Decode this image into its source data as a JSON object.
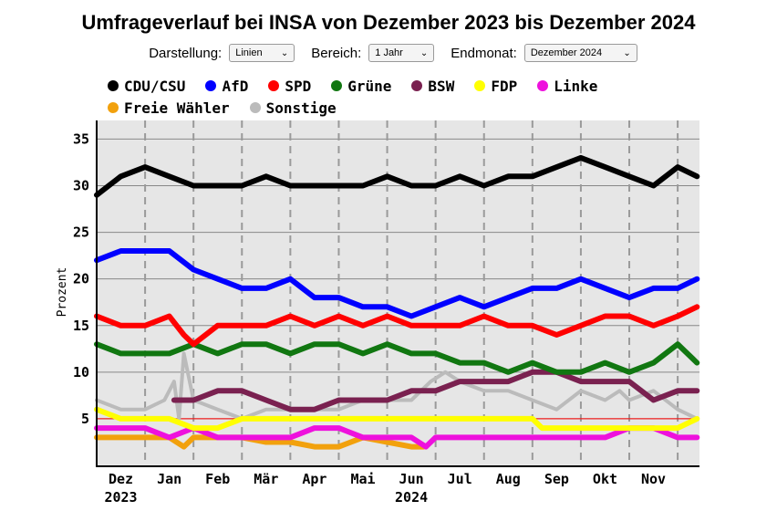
{
  "page": {
    "title": "Umfrageverlauf bei INSA von Dezember 2023 bis Dezember 2024"
  },
  "controls": {
    "darstellung_label": "Darstellung:",
    "darstellung_value": "Linien",
    "bereich_label": "Bereich:",
    "bereich_value": "1 Jahr",
    "endmonat_label": "Endmonat:",
    "endmonat_value": "Dezember 2024"
  },
  "chart_data": {
    "type": "line",
    "ylabel": "Prozent",
    "xlabel": "",
    "ylim": [
      0,
      37
    ],
    "yticks": [
      5,
      10,
      15,
      20,
      25,
      30,
      35
    ],
    "threshold": 5,
    "x_range": [
      0,
      12.45
    ],
    "x_ticks": [
      {
        "label": "Dez",
        "pos": 0.5,
        "sub": "2023"
      },
      {
        "label": "Jan",
        "pos": 1.5
      },
      {
        "label": "Feb",
        "pos": 2.5
      },
      {
        "label": "Mär",
        "pos": 3.5
      },
      {
        "label": "Apr",
        "pos": 4.5
      },
      {
        "label": "Mai",
        "pos": 5.5
      },
      {
        "label": "Jun",
        "pos": 6.5,
        "sub": "2024"
      },
      {
        "label": "Jul",
        "pos": 7.5
      },
      {
        "label": "Aug",
        "pos": 8.5
      },
      {
        "label": "Sep",
        "pos": 9.5
      },
      {
        "label": "Okt",
        "pos": 10.5
      },
      {
        "label": "Nov",
        "pos": 11.5
      }
    ],
    "series": [
      {
        "name": "Sonstige",
        "color": "#bbbbbb",
        "x": [
          0,
          0.5,
          1,
          1.4,
          1.6,
          1.7,
          1.8,
          2,
          2.5,
          3,
          3.5,
          4,
          4.5,
          5,
          5.5,
          6,
          6.5,
          6.9,
          7.2,
          7.5,
          8,
          8.5,
          9,
          9.5,
          10,
          10.5,
          10.8,
          11,
          11.5,
          12,
          12.4
        ],
        "values": [
          7,
          6,
          6,
          7,
          9,
          5,
          12,
          7,
          6,
          5,
          6,
          6,
          6,
          6,
          7,
          7,
          7,
          9,
          10,
          9,
          8,
          8,
          7,
          6,
          8,
          7,
          8,
          7,
          8,
          6,
          5
        ]
      },
      {
        "name": "Freie Wähler",
        "color": "#f2a10d",
        "x": [
          0,
          0.5,
          1,
          1.5,
          1.8,
          2,
          2.5,
          3,
          3.5,
          4,
          4.5,
          5,
          5.5,
          6,
          6.5,
          6.75
        ],
        "values": [
          3,
          3,
          3,
          3,
          2,
          3,
          3,
          3,
          2.5,
          2.5,
          2,
          2,
          3,
          2.5,
          2,
          2
        ]
      },
      {
        "name": "Linke",
        "color": "#ee11dd",
        "x": [
          0,
          0.5,
          1,
          1.5,
          2,
          2.5,
          3,
          3.5,
          4,
          4.5,
          5,
          5.5,
          6,
          6.5,
          6.8,
          7,
          7.5,
          8,
          8.5,
          9,
          9.5,
          10,
          10.5,
          11,
          11.5,
          12,
          12.4
        ],
        "values": [
          4,
          4,
          4,
          3,
          4,
          3,
          3,
          3,
          3,
          4,
          4,
          3,
          3,
          3,
          2,
          3,
          3,
          3,
          3,
          3,
          3,
          3,
          3,
          4,
          4,
          3,
          3
        ]
      },
      {
        "name": "FDP",
        "color": "#ffff00",
        "x": [
          0,
          0.5,
          1,
          1.5,
          2,
          2.5,
          3,
          3.5,
          4,
          4.5,
          5,
          5.5,
          6,
          6.5,
          7,
          7.5,
          8,
          8.5,
          9,
          9.2,
          9.5,
          10,
          10.5,
          11,
          11.5,
          12,
          12.4
        ],
        "values": [
          6,
          5,
          5,
          5,
          4,
          4,
          5,
          5,
          5,
          5,
          5,
          5,
          5,
          5,
          5,
          5,
          5,
          5,
          5,
          4,
          4,
          4,
          4,
          4,
          4,
          4,
          5
        ]
      },
      {
        "name": "BSW",
        "color": "#7a2150",
        "x": [
          1.6,
          2,
          2.5,
          3,
          3.5,
          4,
          4.5,
          5,
          5.5,
          6,
          6.5,
          7,
          7.5,
          8,
          8.5,
          9,
          9.5,
          10,
          10.5,
          11,
          11.5,
          12,
          12.4
        ],
        "values": [
          7,
          7,
          8,
          8,
          7,
          6,
          6,
          7,
          7,
          7,
          8,
          8,
          9,
          9,
          9,
          10,
          10,
          9,
          9,
          9,
          7,
          8,
          8
        ]
      },
      {
        "name": "Grüne",
        "color": "#117711",
        "x": [
          0,
          0.5,
          1,
          1.5,
          2,
          2.5,
          3,
          3.5,
          4,
          4.5,
          5,
          5.5,
          6,
          6.5,
          7,
          7.5,
          8,
          8.5,
          9,
          9.5,
          10,
          10.5,
          11,
          11.5,
          12,
          12.4
        ],
        "values": [
          13,
          12,
          12,
          12,
          13,
          12,
          13,
          13,
          12,
          13,
          13,
          12,
          13,
          12,
          12,
          11,
          11,
          10,
          11,
          10,
          10,
          11,
          10,
          11,
          13,
          11
        ]
      },
      {
        "name": "SPD",
        "color": "#ff0000",
        "x": [
          0,
          0.5,
          1,
          1.5,
          1.8,
          2,
          2.5,
          3,
          3.5,
          4,
          4.5,
          5,
          5.5,
          6,
          6.5,
          7,
          7.5,
          8,
          8.5,
          9,
          9.5,
          10,
          10.5,
          11,
          11.5,
          12,
          12.4
        ],
        "values": [
          16,
          15,
          15,
          16,
          14,
          13,
          15,
          15,
          15,
          16,
          15,
          16,
          15,
          16,
          15,
          15,
          15,
          16,
          15,
          15,
          14,
          15,
          16,
          16,
          15,
          16,
          17
        ]
      },
      {
        "name": "AfD",
        "color": "#0000ff",
        "x": [
          0,
          0.5,
          1,
          1.5,
          2,
          2.5,
          3,
          3.5,
          4,
          4.5,
          5,
          5.5,
          6,
          6.5,
          7,
          7.5,
          8,
          8.5,
          9,
          9.5,
          10,
          10.5,
          11,
          11.5,
          12,
          12.4
        ],
        "values": [
          22,
          23,
          23,
          23,
          21,
          20,
          19,
          19,
          20,
          18,
          18,
          17,
          17,
          16,
          17,
          18,
          17,
          18,
          19,
          19,
          20,
          19,
          18,
          19,
          19,
          20
        ]
      },
      {
        "name": "CDU/CSU",
        "color": "#000000",
        "x": [
          0,
          0.5,
          1,
          1.5,
          2,
          2.5,
          3,
          3.5,
          4,
          4.5,
          5,
          5.5,
          6,
          6.5,
          7,
          7.5,
          8,
          8.5,
          9,
          9.5,
          10,
          10.5,
          11,
          11.5,
          12,
          12.4
        ],
        "values": [
          29,
          31,
          32,
          31,
          30,
          30,
          30,
          31,
          30,
          30,
          30,
          30,
          31,
          30,
          30,
          31,
          30,
          31,
          31,
          32,
          33,
          32,
          31,
          30,
          32,
          31
        ]
      }
    ],
    "legend": [
      {
        "name": "CDU/CSU",
        "color": "#000000"
      },
      {
        "name": "AfD",
        "color": "#0000ff"
      },
      {
        "name": "SPD",
        "color": "#ff0000"
      },
      {
        "name": "Grüne",
        "color": "#117711"
      },
      {
        "name": "BSW",
        "color": "#7a2150"
      },
      {
        "name": "FDP",
        "color": "#ffff00"
      },
      {
        "name": "Linke",
        "color": "#ee11dd"
      },
      {
        "name": "Freie Wähler",
        "color": "#f2a10d"
      },
      {
        "name": "Sonstige",
        "color": "#bbbbbb"
      }
    ],
    "plot_bg": "#e6e6e6"
  }
}
